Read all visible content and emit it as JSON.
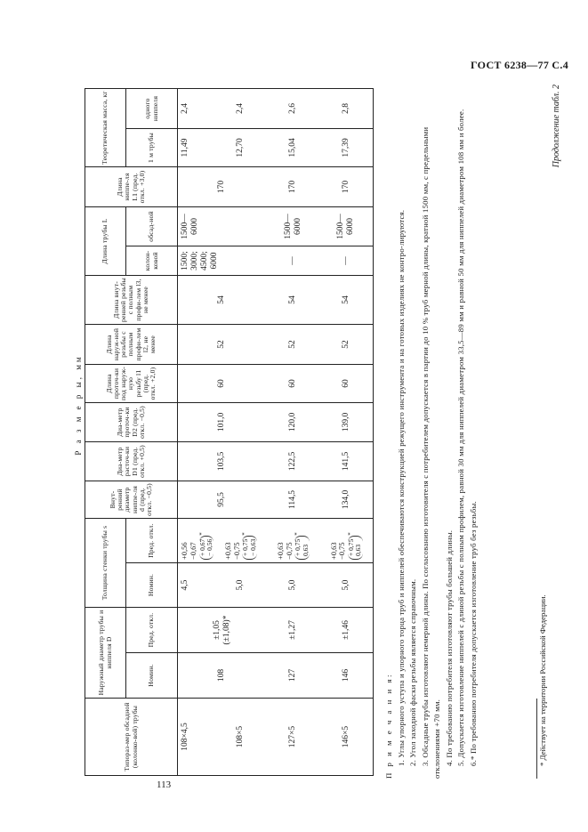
{
  "header": {
    "standard": "ГОСТ 6238—77 С.4"
  },
  "page_number": "113",
  "continuation": "Продолжение табл. 2",
  "dimensions_caption": "Р а з м е р ы, мм",
  "table": {
    "headers": {
      "size": "Типораз-мер обсадной (колонко-вой) трубы",
      "outer_diam_group": "Наружный диаметр трубы и ниппеля D",
      "wall_group": "Толщина стенки трубы s",
      "nom": "Номин.",
      "tol": "Пред. откл.",
      "inner_diam": "Внут-ренний диаметр ниппе-ля d (пред. откл. −0,5)",
      "bore_diam": "Диа-метр расточ-ки D1 (пред. откл. +0,5)",
      "groove_diam": "Диа-метр проточ-ки D2 (пред. откл. −0,5)",
      "groove_len": "Длина проточ-ки под наруж-ную резьбу l1 (пред. откл. +2,0)",
      "ext_thread_len": "Длина наруж-ной резьбы с полным профи-лем l2, не менее",
      "int_thread_len": "Длина внут-ренней резьбы с полным профи-лем l3, не менее",
      "pipe_len_group": "Длина трубы L",
      "core": "колон-ковой",
      "casing": "обсад-ной",
      "nipple_len": "Длина ниппе-ля L1 (пред. откл. +3,0)",
      "mass_group": "Теоретическая масса, кг",
      "mass_pipe": "1 м трубы",
      "mass_nipple": "одного ниппеля"
    },
    "rows": [
      {
        "size": "108×4,5",
        "s_nom": "4,5",
        "s_tol_a": "+0,56",
        "s_tol_b": "−0,67",
        "s_alt_a": "+ 0,67",
        "s_alt_b": "− 0,56",
        "core": "1500; 3000; 4500; 6000",
        "casing": "1500— 6000",
        "mass_pipe": "11,49",
        "mass_nipple": "2,4"
      },
      {
        "size": "108×5",
        "s_nom": "5,0",
        "s_tol_a": "+0,63",
        "s_tol_b": "−0,75",
        "s_alt_a": "+ 0,75",
        "s_alt_b": "− 0,63",
        "mass_pipe": "12,70",
        "mass_nipple": "2,4"
      },
      {
        "size": "127×5",
        "d_nom": "127",
        "d_tol": "±1,27",
        "s_nom": "5,0",
        "s_tol_a": "+0,63",
        "s_tol_b": "−0,75",
        "s_alt_a": "+ 0,75",
        "s_alt_b": "0,63",
        "d": "114,5",
        "D1": "122,5",
        "D2": "120,0",
        "l1": "60",
        "l2": "52",
        "l3": "54",
        "core": "—",
        "casing": "1500— 6000",
        "nipple_len": "170",
        "mass_pipe": "15,04",
        "mass_nipple": "2,6"
      },
      {
        "size": "146×5",
        "d_nom": "146",
        "d_tol": "±1,46",
        "s_nom": "5,0",
        "s_tol_a": "+0,63",
        "s_tol_b": "−0,75",
        "s_alt_a": "+ 0,75",
        "s_alt_b": "0,63",
        "d": "134,0",
        "D1": "141,5",
        "D2": "139,0",
        "l1": "60",
        "l2": "52",
        "l3": "54",
        "core": "—",
        "casing": "1500— 6000",
        "nipple_len": "170",
        "mass_pipe": "17,39",
        "mass_nipple": "2,8"
      }
    ],
    "merged_108": {
      "d_nom": "108",
      "d_tol": "±1,05",
      "d_tol_alt": "(±1,08)*",
      "d": "95,5",
      "D1": "103,5",
      "D2": "101,0",
      "l1": "60",
      "l2": "52",
      "l3": "54",
      "nipple_len": "170"
    }
  },
  "notes": {
    "title": "П р и м е ч а н и я:",
    "items": [
      "1. Углы упорного уступа и упорного торца труб и ниппелей обеспечиваются конструкцией режущего инструмента и на готовых изделиях не контро-лируются.",
      "2. Угол заходной фаски резьбы является справочным.",
      "3. Обсадные трубы изготовляют немерной длины. По согласованию изготовителя с потребителем допускается в партии до 10 % труб мерной длины, кратной 1500 мм, с предельными отклонениями +70 мм.",
      "4. По требованию потребителя изготовляют трубы большей длины.",
      "5. Допускается изготовление ниппелей с длиной резьбы с полным профилем, равной 30 мм для ниппелей диаметром 33,5—89 мм и равной 50 мм для ниппелей диаметром 108 мм и более.",
      "6.* По требованию потребителя допускается изготовление труб без резьбы."
    ]
  },
  "footnote": "* Действует на территории Российской Федерации."
}
